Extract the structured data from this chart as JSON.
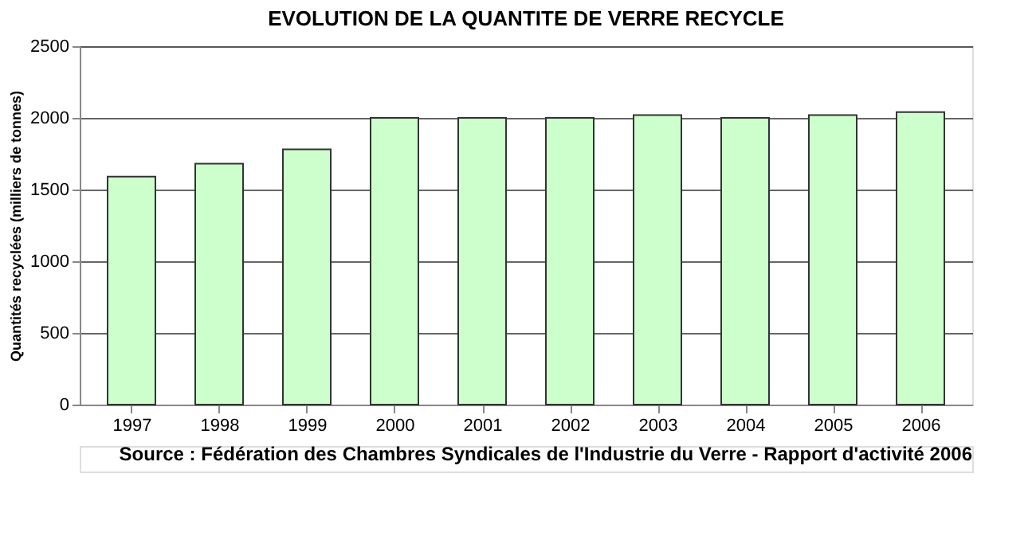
{
  "chart_data": {
    "type": "bar",
    "title": "EVOLUTION DE LA QUANTITE DE VERRE RECYCLE",
    "ylabel": "Quantités recyclées (milliers de tonnes)",
    "categories": [
      "1997",
      "1998",
      "1999",
      "2000",
      "2001",
      "2002",
      "2003",
      "2004",
      "2005",
      "2006"
    ],
    "series": [
      {
        "color": "#ccffcc",
        "values": [
          1590,
          1680,
          1780,
          2000,
          2000,
          2000,
          2020,
          2000,
          2020,
          2040
        ]
      }
    ],
    "ylim": [
      0,
      2500
    ],
    "yticks": [
      0,
      500,
      1000,
      1500,
      2000,
      2500
    ],
    "grid": "y",
    "annotations": [
      "Source : Fédération des Chambres Syndicales de l'Industrie du Verre - Rapport d'activité 2006"
    ]
  }
}
